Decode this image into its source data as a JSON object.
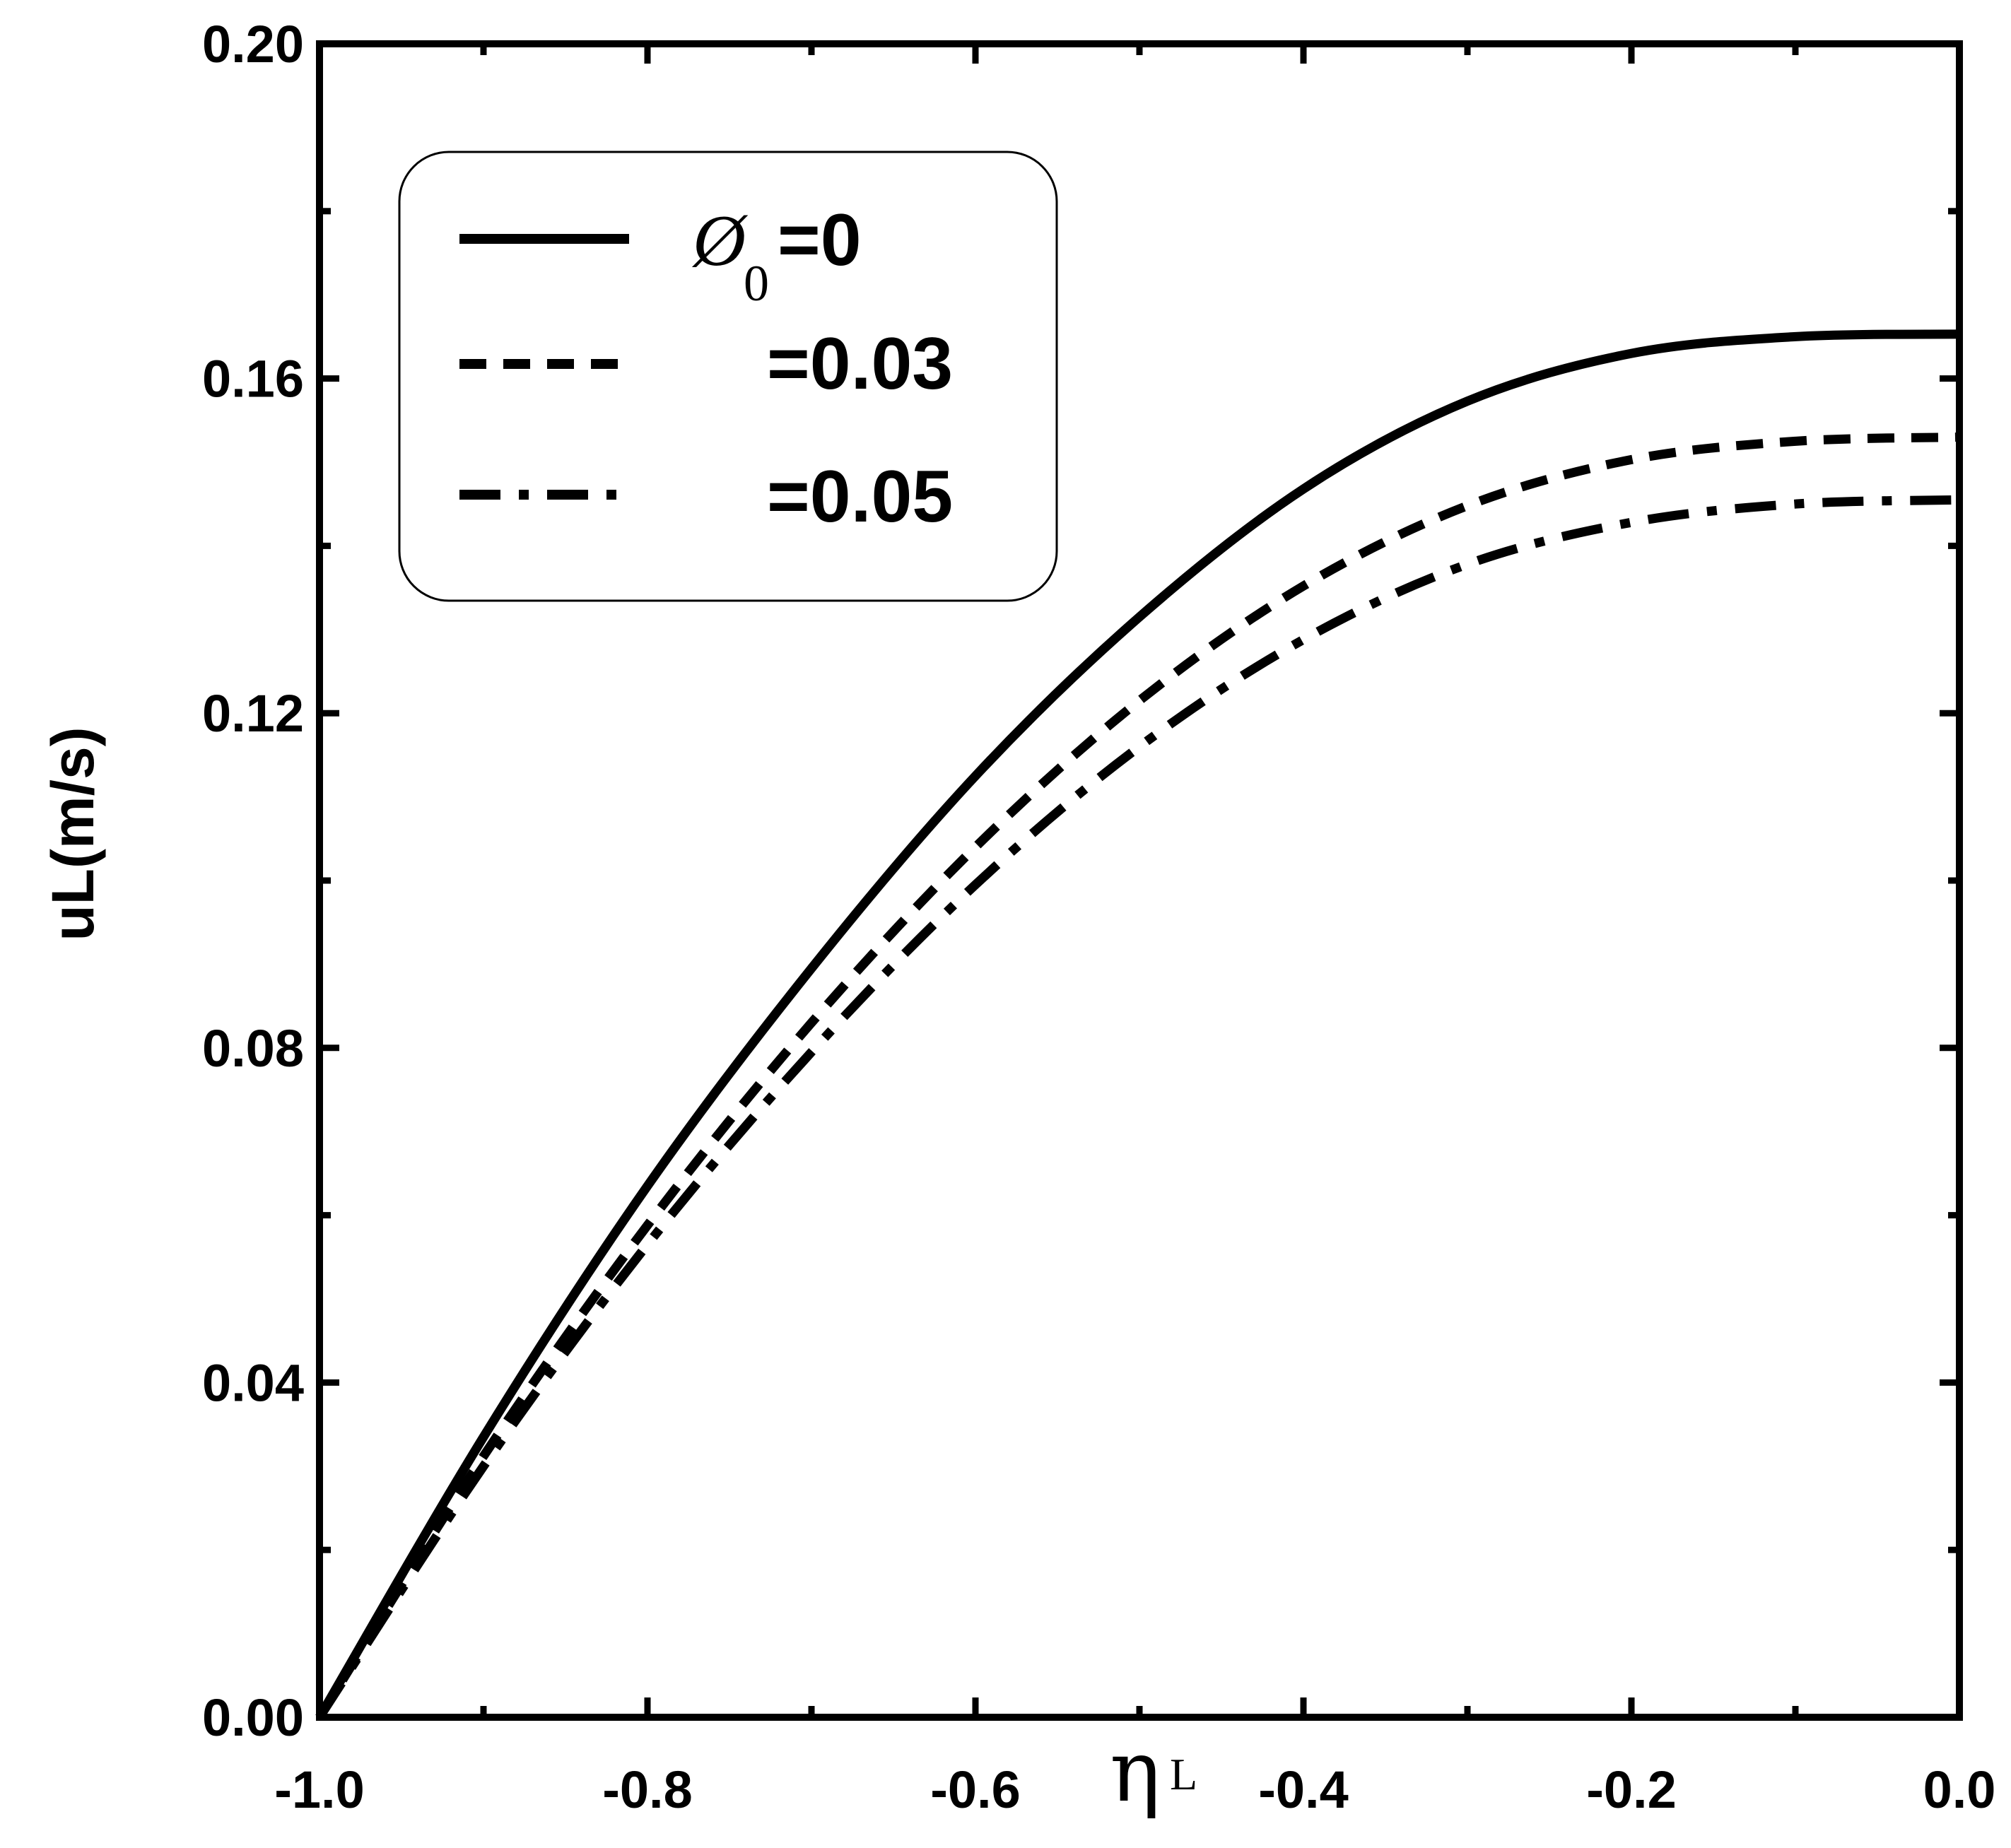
{
  "chart_data": {
    "type": "line",
    "xlabel": "ηL",
    "xlabel_symbol": "η",
    "xlabel_sub": "L",
    "ylabel": "uL(m/s)",
    "xlim": [
      -1.0,
      0.0
    ],
    "ylim": [
      0.0,
      0.2
    ],
    "x_ticks": [
      -1.0,
      -0.8,
      -0.6,
      -0.4,
      -0.2,
      0.0
    ],
    "x_tick_labels": [
      "-1.0",
      "-0.8",
      "-0.6",
      "-0.4",
      "-0.2",
      "0.0"
    ],
    "y_ticks": [
      0.0,
      0.04,
      0.08,
      0.12,
      0.16,
      0.2
    ],
    "y_tick_labels": [
      "0.00",
      "0.04",
      "0.08",
      "0.12",
      "0.16",
      "0.20"
    ],
    "grid": false,
    "legend_position": "top-left",
    "legend": {
      "symbol": "Ø",
      "sub": "0",
      "entries": [
        "=0",
        "=0.03",
        "=0.05"
      ]
    },
    "x": [
      -1.0,
      -0.9,
      -0.8,
      -0.7,
      -0.6,
      -0.5,
      -0.4,
      -0.3,
      -0.2,
      -0.1,
      0.0
    ],
    "series": [
      {
        "name": "=0",
        "style": "solid",
        "values": [
          0.0,
          0.0335,
          0.0635,
          0.0895,
          0.1125,
          0.1315,
          0.1468,
          0.1573,
          0.163,
          0.165,
          0.1653
        ]
      },
      {
        "name": "=0.03",
        "style": "dash",
        "values": [
          0.0,
          0.0312,
          0.0588,
          0.083,
          0.104,
          0.1215,
          0.1352,
          0.1448,
          0.1503,
          0.1525,
          0.153
        ]
      },
      {
        "name": "=0.05",
        "style": "dashdot",
        "values": [
          0.0,
          0.03,
          0.0565,
          0.0795,
          0.0995,
          0.116,
          0.1288,
          0.1378,
          0.1428,
          0.145,
          0.1455
        ]
      }
    ]
  }
}
